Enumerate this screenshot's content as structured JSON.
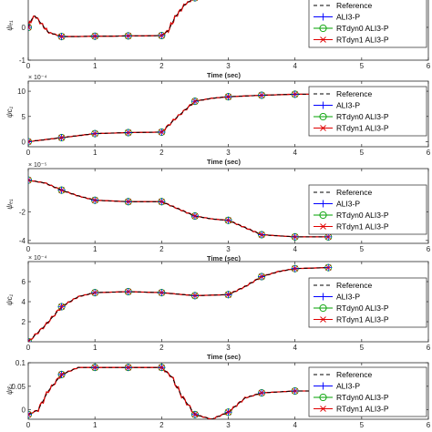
{
  "chart_data": [
    {
      "type": "line",
      "ylabel": "ψₑ₁",
      "exponent": "",
      "xlabel": "Time (sec)",
      "xlim": [
        0,
        6
      ],
      "ylim": [
        -1,
        1
      ],
      "xticks": [
        "0",
        "1",
        "2",
        "3",
        "4",
        "5",
        "6"
      ],
      "yticks": [
        "-1",
        "0",
        "1"
      ],
      "x": [
        0,
        0.05,
        0.1,
        0.2,
        0.3,
        0.5,
        0.75,
        1.0,
        1.25,
        1.5,
        1.75,
        2.0,
        2.1,
        2.2,
        2.35,
        2.5,
        2.75,
        3.0,
        3.25,
        3.5
      ],
      "series": [
        {
          "name": "Reference",
          "values": [
            0.0,
            0.25,
            0.35,
            0.1,
            -0.15,
            -0.28,
            -0.28,
            -0.27,
            -0.27,
            -0.26,
            -0.26,
            -0.25,
            -0.1,
            0.3,
            0.7,
            0.9,
            1.0,
            1.0,
            1.02,
            1.03
          ]
        },
        {
          "name": "ALI3-P",
          "values": [
            0.0,
            0.25,
            0.35,
            0.1,
            -0.15,
            -0.28,
            -0.28,
            -0.27,
            -0.27,
            -0.26,
            -0.26,
            -0.25,
            -0.1,
            0.3,
            0.7,
            0.9,
            1.0,
            1.0,
            1.02,
            1.03
          ]
        },
        {
          "name": "RTdyn0 ALI3-P",
          "values": [
            0.0,
            0.25,
            0.35,
            0.1,
            -0.15,
            -0.28,
            -0.28,
            -0.27,
            -0.27,
            -0.26,
            -0.26,
            -0.25,
            -0.1,
            0.3,
            0.7,
            0.9,
            1.0,
            1.0,
            1.02,
            1.03
          ]
        },
        {
          "name": "RTdyn1 ALI3-P",
          "values": [
            0.0,
            0.25,
            0.35,
            0.1,
            -0.15,
            -0.28,
            -0.28,
            -0.27,
            -0.27,
            -0.26,
            -0.26,
            -0.25,
            -0.1,
            0.3,
            0.7,
            0.9,
            1.0,
            1.0,
            1.02,
            1.03
          ]
        }
      ]
    },
    {
      "type": "line",
      "ylabel": "ψc₁",
      "exponent": "× 10⁻⁴",
      "xlabel": "Time (sec)",
      "xlim": [
        0,
        6
      ],
      "ylim": [
        -1,
        12
      ],
      "xticks": [
        "0",
        "1",
        "2",
        "3",
        "4",
        "5",
        "6"
      ],
      "yticks": [
        "0",
        "5",
        "10"
      ],
      "x": [
        0,
        0.5,
        1.0,
        1.5,
        2.0,
        2.2,
        2.5,
        2.75,
        3.0,
        3.5,
        4.0,
        4.5
      ],
      "series": [
        {
          "name": "Reference",
          "values": [
            0.0,
            0.8,
            1.6,
            1.8,
            1.9,
            4.5,
            8.0,
            8.6,
            8.9,
            9.2,
            9.4,
            9.4
          ]
        },
        {
          "name": "ALI3-P",
          "values": [
            0.0,
            0.8,
            1.6,
            1.8,
            1.9,
            4.5,
            8.0,
            8.6,
            8.9,
            9.2,
            9.4,
            9.4
          ]
        },
        {
          "name": "RTdyn0 ALI3-P",
          "values": [
            0.0,
            0.8,
            1.6,
            1.8,
            1.9,
            4.5,
            8.0,
            8.6,
            8.9,
            9.2,
            9.4,
            9.4
          ]
        },
        {
          "name": "RTdyn1 ALI3-P",
          "values": [
            0.0,
            0.8,
            1.6,
            1.8,
            1.9,
            4.5,
            8.0,
            8.6,
            8.9,
            9.2,
            9.4,
            9.4
          ]
        }
      ]
    },
    {
      "type": "line",
      "ylabel": "ψₑ₁",
      "exponent": "× 10⁻⁵",
      "xlabel": "Time (sec)",
      "xlim": [
        0,
        6
      ],
      "ylim": [
        -4.2,
        1.0
      ],
      "xticks": [
        "0",
        "1",
        "2",
        "3",
        "4",
        "5",
        "6"
      ],
      "yticks": [
        "-4",
        "-2"
      ],
      "x": [
        0,
        0.25,
        0.5,
        0.75,
        1.0,
        1.5,
        2.0,
        2.2,
        2.5,
        2.75,
        3.0,
        3.25,
        3.5,
        4.0,
        4.5
      ],
      "series": [
        {
          "name": "Reference",
          "values": [
            0.2,
            0.0,
            -0.5,
            -0.9,
            -1.2,
            -1.3,
            -1.3,
            -1.7,
            -2.3,
            -2.5,
            -2.6,
            -3.1,
            -3.6,
            -3.75,
            -3.75
          ]
        },
        {
          "name": "ALI3-P",
          "values": [
            0.2,
            0.0,
            -0.5,
            -0.9,
            -1.2,
            -1.3,
            -1.3,
            -1.7,
            -2.3,
            -2.5,
            -2.6,
            -3.1,
            -3.6,
            -3.75,
            -3.75
          ]
        },
        {
          "name": "RTdyn0 ALI3-P",
          "values": [
            0.2,
            0.0,
            -0.5,
            -0.9,
            -1.2,
            -1.3,
            -1.3,
            -1.7,
            -2.3,
            -2.5,
            -2.6,
            -3.1,
            -3.6,
            -3.75,
            -3.75
          ]
        },
        {
          "name": "RTdyn1 ALI3-P",
          "values": [
            0.2,
            0.0,
            -0.5,
            -0.9,
            -1.2,
            -1.3,
            -1.3,
            -1.7,
            -2.3,
            -2.5,
            -2.6,
            -3.1,
            -3.6,
            -3.75,
            -3.75
          ]
        }
      ]
    },
    {
      "type": "line",
      "ylabel": "ψc₁",
      "exponent": "× 10⁻⁴",
      "xlabel": "Time (sec)",
      "xlim": [
        0,
        6
      ],
      "ylim": [
        0,
        8
      ],
      "xticks": [
        "0",
        "1",
        "2",
        "3",
        "4",
        "5",
        "6"
      ],
      "yticks": [
        "2",
        "4",
        "6"
      ],
      "x": [
        0,
        0.25,
        0.5,
        0.75,
        1.0,
        1.5,
        2.0,
        2.5,
        3.0,
        3.25,
        3.5,
        3.75,
        4.0,
        4.5
      ],
      "series": [
        {
          "name": "Reference",
          "values": [
            0.0,
            1.6,
            3.5,
            4.5,
            4.9,
            5.0,
            4.9,
            4.6,
            4.7,
            5.5,
            6.5,
            7.0,
            7.3,
            7.4
          ]
        },
        {
          "name": "ALI3-P",
          "values": [
            0.0,
            1.6,
            3.5,
            4.5,
            4.9,
            5.0,
            4.9,
            4.6,
            4.7,
            5.5,
            6.5,
            7.0,
            7.3,
            7.4
          ]
        },
        {
          "name": "RTdyn0 ALI3-P",
          "values": [
            0.0,
            1.6,
            3.5,
            4.5,
            4.9,
            5.0,
            4.9,
            4.6,
            4.7,
            5.5,
            6.5,
            7.0,
            7.3,
            7.4
          ]
        },
        {
          "name": "RTdyn1 ALI3-P",
          "values": [
            0.0,
            1.6,
            3.5,
            4.5,
            4.9,
            5.0,
            4.9,
            4.6,
            4.7,
            5.5,
            6.5,
            7.0,
            7.3,
            7.4
          ]
        }
      ]
    },
    {
      "type": "line",
      "ylabel": "ψε₁",
      "exponent": "",
      "xlabel": "",
      "xlim": [
        0,
        6
      ],
      "ylim": [
        -0.02,
        0.1
      ],
      "xticks": [
        "0",
        "1",
        "2",
        "3",
        "4",
        "5",
        "6"
      ],
      "yticks": [
        "0",
        "0.05",
        "0.1"
      ],
      "x": [
        0,
        0.15,
        0.3,
        0.5,
        0.75,
        1.0,
        1.5,
        2.0,
        2.15,
        2.3,
        2.5,
        2.75,
        3.0,
        3.25,
        3.5,
        4.0,
        4.5
      ],
      "series": [
        {
          "name": "Reference",
          "values": [
            -0.01,
            0.0,
            0.04,
            0.075,
            0.09,
            0.09,
            0.09,
            0.09,
            0.07,
            0.03,
            -0.01,
            -0.02,
            -0.005,
            0.025,
            0.036,
            0.04,
            0.04
          ]
        },
        {
          "name": "ALI3-P",
          "values": [
            -0.01,
            0.0,
            0.04,
            0.075,
            0.09,
            0.09,
            0.09,
            0.09,
            0.07,
            0.03,
            -0.01,
            -0.02,
            -0.005,
            0.025,
            0.036,
            0.04,
            0.04
          ]
        },
        {
          "name": "RTdyn0 ALI3-P",
          "values": [
            -0.01,
            0.0,
            0.04,
            0.075,
            0.09,
            0.09,
            0.09,
            0.09,
            0.07,
            0.03,
            -0.01,
            -0.02,
            -0.005,
            0.025,
            0.036,
            0.04,
            0.04
          ]
        },
        {
          "name": "RTdyn1 ALI3-P",
          "values": [
            -0.01,
            0.0,
            0.04,
            0.075,
            0.09,
            0.09,
            0.09,
            0.09,
            0.07,
            0.03,
            -0.01,
            -0.02,
            -0.005,
            0.025,
            0.036,
            0.04,
            0.04
          ]
        }
      ]
    }
  ],
  "legend": {
    "placement": "right",
    "entries": [
      "Reference",
      "ALI3-P",
      "RTdyn0 ALI3-P",
      "RTdyn1 ALI3-P"
    ]
  },
  "colors": {
    "reference": "#000000",
    "ali3p": "#0000ff",
    "rtdyn0": "#00a000",
    "rtdyn1": "#e00000"
  },
  "markers": {
    "ALI3-P": "plus",
    "RTdyn0 ALI3-P": "circle",
    "RTdyn1 ALI3-P": "cross"
  }
}
